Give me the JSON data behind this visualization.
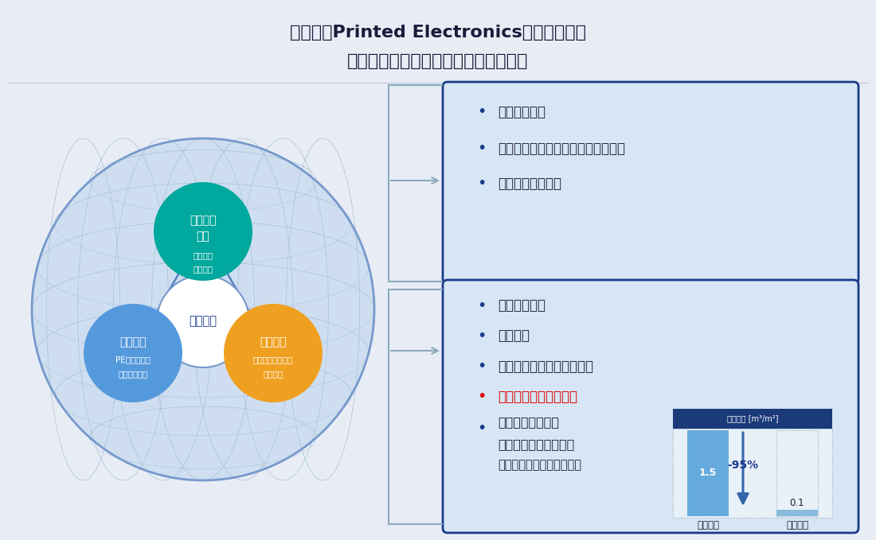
{
  "title_line1": "京写は、Printed Electronics技術により、",
  "title_line2": "お客様と新たな価値共創を目指します",
  "bg_color": "#e8edf5",
  "title_color": "#1a1a3a",
  "box1_bg": "#d6e6f5",
  "box2_bg": "#d6e6f5",
  "box_border": "#1a3a8a",
  "teal_color": "#00a89d",
  "orange_color": "#f0a020",
  "blue_circle": "#5599dd",
  "blue_dark": "#1a3a8a",
  "box1_items": [
    "高付加価値化",
    "フレックスリジッドプリント配線板",
    "ストレッチャブル"
  ],
  "box2_items_normal": [
    "環境負荷低減",
    "低価格化",
    "シンプル生産による効率化"
  ],
  "box2_item_red": "業界最短リードタイム",
  "water_label": "水使用量 [m³/m²]",
  "water_bar1_val": "1.5",
  "water_bar2_val": "0.1",
  "water_pct": "-95%",
  "water_label1": "既存工法",
  "water_label2": "弊社工法"
}
